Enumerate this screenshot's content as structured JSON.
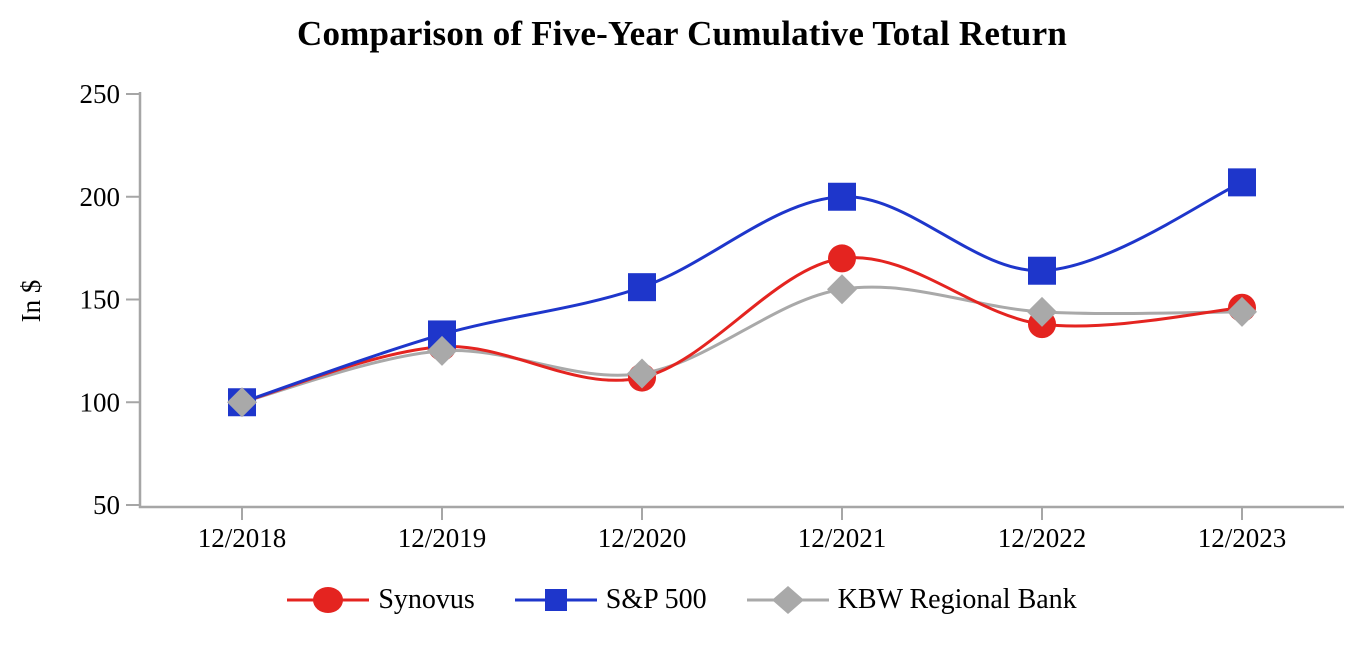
{
  "chart_data": {
    "type": "line",
    "title": "Comparison of Five-Year Cumulative Total Return",
    "ylabel": "In $",
    "xlabel": "",
    "categories": [
      "12/2018",
      "12/2019",
      "12/2020",
      "12/2021",
      "12/2022",
      "12/2023"
    ],
    "series": [
      {
        "name": "Synovus",
        "marker": "circle",
        "color": "#E42420",
        "values": [
          100,
          127,
          112,
          170,
          138,
          146
        ]
      },
      {
        "name": "S&P 500",
        "marker": "square",
        "color": "#1E36CB",
        "values": [
          100,
          133,
          156,
          200,
          164,
          207
        ]
      },
      {
        "name": "KBW Regional Bank",
        "marker": "diamond",
        "color": "#A9A9A9",
        "values": [
          100,
          125,
          114,
          155,
          144,
          144
        ]
      }
    ],
    "y_ticks": [
      250,
      200,
      150,
      100,
      50
    ],
    "ylim": [
      50,
      250
    ],
    "grid": false,
    "legend_position": "bottom",
    "axis_color": "#A6A6A6",
    "smooth_lines": true
  }
}
